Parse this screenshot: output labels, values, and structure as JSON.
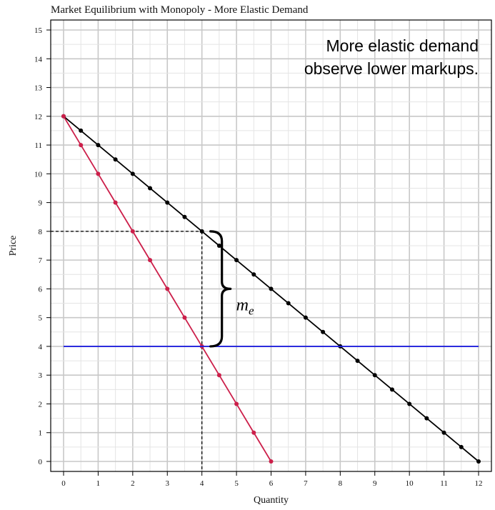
{
  "chart_data": {
    "type": "line",
    "title": "Market Equilibrium with Monopoly - More Elastic Demand",
    "xlabel": "Quantity",
    "ylabel": "Price",
    "xlim": [
      0,
      12
    ],
    "ylim": [
      0,
      15
    ],
    "x_ticks": [
      0,
      1,
      2,
      3,
      4,
      5,
      6,
      7,
      8,
      9,
      10,
      11,
      12
    ],
    "y_ticks": [
      0,
      1,
      2,
      3,
      4,
      5,
      6,
      7,
      8,
      9,
      10,
      11,
      12,
      13,
      14,
      15
    ],
    "grid": true,
    "series": [
      {
        "key": "demand",
        "color": "#000000",
        "markers": true,
        "x": [
          0,
          0.5,
          1,
          1.5,
          2,
          2.5,
          3,
          3.5,
          4,
          4.5,
          5,
          5.5,
          6,
          6.5,
          7,
          7.5,
          8,
          8.5,
          9,
          9.5,
          10,
          10.5,
          11,
          11.5,
          12
        ],
        "y": [
          12,
          11.5,
          11,
          10.5,
          10,
          9.5,
          9,
          8.5,
          8,
          7.5,
          7,
          6.5,
          6,
          5.5,
          5,
          4.5,
          4,
          3.5,
          3,
          2.5,
          2,
          1.5,
          1,
          0.5,
          0
        ]
      },
      {
        "key": "marginal_revenue",
        "color": "#cc1f4a",
        "markers": true,
        "x": [
          0,
          0.5,
          1,
          1.5,
          2,
          2.5,
          3,
          3.5,
          4,
          4.5,
          5,
          5.5,
          6
        ],
        "y": [
          12,
          11,
          10,
          9,
          8,
          7,
          6,
          5,
          4,
          3,
          2,
          1,
          0
        ]
      },
      {
        "key": "marginal_cost",
        "color": "#1f1fdd",
        "markers": false,
        "x": [
          0,
          12
        ],
        "y": [
          4,
          4
        ]
      }
    ],
    "equilibrium": {
      "quantity": 4,
      "price": 8,
      "marginal_cost": 4
    },
    "annotations": {
      "note_line1": "More elastic demand",
      "note_line2": "observe lower markups.",
      "markup_label": "m",
      "markup_subscript": "e"
    }
  }
}
